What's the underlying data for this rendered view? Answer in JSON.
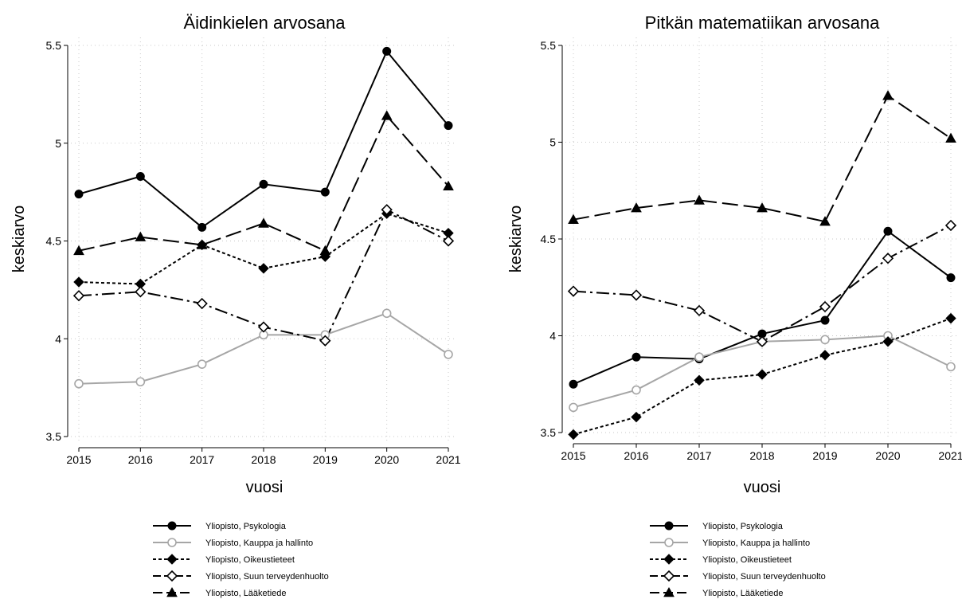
{
  "chart_data": [
    {
      "type": "line",
      "title": "Äidinkielen arvosana",
      "xlabel": "vuosi",
      "ylabel": "keskiarvo",
      "x": [
        2015,
        2016,
        2017,
        2018,
        2019,
        2020,
        2021
      ],
      "xticks": [
        "2015",
        "2016",
        "2017",
        "2018",
        "2019",
        "2020",
        "2021"
      ],
      "ylim": [
        3.5,
        5.5
      ],
      "yticks": [
        3.5,
        4,
        4.5,
        5,
        5.5
      ],
      "ytick_labels": [
        "3.5",
        "4",
        "4.5",
        "5",
        "5.5"
      ],
      "grid": true,
      "legend_position": "bottom",
      "series": [
        {
          "name": "Yliopisto, Psykologia",
          "values": [
            4.74,
            4.83,
            4.57,
            4.79,
            4.75,
            5.47,
            5.09
          ]
        },
        {
          "name": "Yliopisto, Kauppa ja hallinto",
          "values": [
            3.77,
            3.78,
            3.87,
            4.02,
            4.02,
            4.13,
            3.92
          ]
        },
        {
          "name": "Yliopisto, Oikeustieteet",
          "values": [
            4.29,
            4.28,
            4.48,
            4.36,
            4.42,
            4.64,
            4.54
          ]
        },
        {
          "name": "Yliopisto, Suun terveydenhuolto",
          "values": [
            4.22,
            4.24,
            4.18,
            4.06,
            3.99,
            4.66,
            4.5
          ]
        },
        {
          "name": "Yliopisto, Lääketiede",
          "values": [
            4.45,
            4.52,
            4.48,
            4.59,
            4.45,
            5.14,
            4.78
          ]
        }
      ]
    },
    {
      "type": "line",
      "title": "Pitkän matematiikan arvosana",
      "xlabel": "vuosi",
      "ylabel": "keskiarvo",
      "x": [
        2015,
        2016,
        2017,
        2018,
        2019,
        2020,
        2021
      ],
      "xticks": [
        "2015",
        "2016",
        "2017",
        "2018",
        "2019",
        "2020",
        "2021"
      ],
      "ylim": [
        3.5,
        5.5
      ],
      "yticks": [
        3.5,
        4,
        4.5,
        5,
        5.5
      ],
      "ytick_labels": [
        "3.5",
        "4",
        "4.5",
        "5",
        "5.5"
      ],
      "grid": true,
      "legend_position": "bottom",
      "series": [
        {
          "name": "Yliopisto, Psykologia",
          "values": [
            3.75,
            3.89,
            3.88,
            4.01,
            4.08,
            4.54,
            4.3
          ]
        },
        {
          "name": "Yliopisto, Kauppa ja hallinto",
          "values": [
            3.63,
            3.72,
            3.89,
            3.97,
            3.98,
            4.0,
            3.84
          ]
        },
        {
          "name": "Yliopisto, Oikeustieteet",
          "values": [
            3.49,
            3.58,
            3.77,
            3.8,
            3.9,
            3.97,
            4.09
          ]
        },
        {
          "name": "Yliopisto, Suun terveydenhuolto",
          "values": [
            4.23,
            4.21,
            4.13,
            3.97,
            4.15,
            4.4,
            4.57
          ]
        },
        {
          "name": "Yliopisto, Lääketiede",
          "values": [
            4.6,
            4.66,
            4.7,
            4.66,
            4.59,
            5.24,
            5.02
          ]
        }
      ]
    }
  ],
  "series_styles": [
    {
      "color": "#000000",
      "dash": "",
      "marker": "circle-filled",
      "width": 2
    },
    {
      "color": "#a6a6a6",
      "dash": "",
      "marker": "circle-hollow",
      "width": 2
    },
    {
      "color": "#000000",
      "dash": "4 3",
      "marker": "diamond-filled",
      "width": 2
    },
    {
      "color": "#000000",
      "dash": "16 5 3 5",
      "marker": "diamond-hollow",
      "width": 2
    },
    {
      "color": "#000000",
      "dash": "20 7",
      "marker": "triangle-filled",
      "width": 2
    }
  ]
}
